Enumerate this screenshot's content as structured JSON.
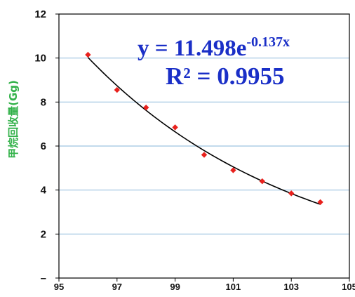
{
  "chart_data": {
    "type": "scatter",
    "title": "",
    "xlabel": "",
    "ylabel": "甲烷回收量(Gg)",
    "xlim": [
      95,
      105
    ],
    "ylim": [
      0,
      12
    ],
    "x_ticks": [
      "95",
      "97",
      "99",
      "101",
      "103",
      "105"
    ],
    "y_ticks": [
      "–",
      "2",
      "4",
      "6",
      "8",
      "10",
      "12"
    ],
    "x_tick_values": [
      95,
      97,
      99,
      101,
      103,
      105
    ],
    "y_tick_values": [
      0,
      2,
      4,
      6,
      8,
      10,
      12
    ],
    "grid": "horizontal",
    "series": [
      {
        "x": [
          96,
          97,
          98,
          99,
          100,
          101,
          102,
          103,
          104
        ],
        "y": [
          10.15,
          8.55,
          7.75,
          6.85,
          5.6,
          4.9,
          4.4,
          3.85,
          3.45
        ],
        "color": "#e8211d",
        "marker": "diamond"
      }
    ],
    "trendline": {
      "type": "exponential",
      "a": 11.498,
      "b": -0.137,
      "x_start": 96,
      "x_end": 104,
      "color": "#000000"
    },
    "annotations": {
      "equation_prefix": "y = 11.498e",
      "equation_exponent": "-0.137x",
      "r2_text": "R² = 0.9955",
      "color": "#1a2fc7"
    },
    "colors": {
      "ylabel": "#33b24a",
      "grid": "#9ec3e0",
      "axis": "#000000"
    }
  }
}
